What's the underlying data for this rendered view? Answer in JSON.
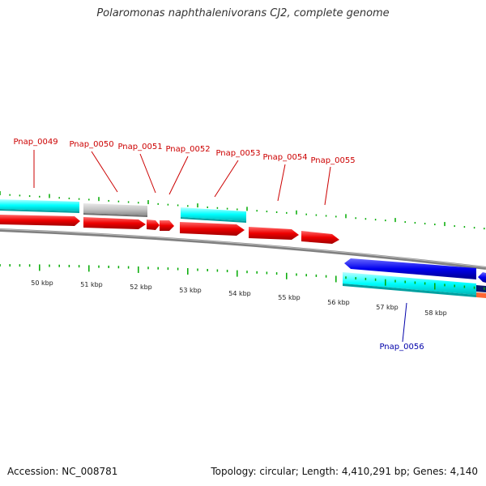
{
  "title": "Polaromonas naphthalenivorans CJ2, complete genome",
  "footer": {
    "accession": "Accession: NC_008781",
    "summary": "Topology: circular; Length: 4,410,291 bp; Genes: 4,140"
  },
  "colors": {
    "backbone": "#8c8c8c",
    "forward_cds": "#ff0000",
    "reverse_cds": "#0000ee",
    "cyan_band": "#00ffff",
    "grey_band": "#c0c0c0",
    "tick": "#00aa00",
    "label_forward": "#cc0000",
    "label_reverse": "#0000aa",
    "orange_band": "#ff6633"
  },
  "scale": {
    "unit": "kbp",
    "labels": [
      "50 kbp",
      "51 kbp",
      "52 kbp",
      "53 kbp",
      "54 kbp",
      "55 kbp",
      "56 kbp",
      "57 kbp",
      "58 kbp"
    ]
  },
  "genes": [
    {
      "name": "Pnap_0049",
      "strand": "forward"
    },
    {
      "name": "Pnap_0050",
      "strand": "forward"
    },
    {
      "name": "Pnap_0051",
      "strand": "forward"
    },
    {
      "name": "Pnap_0052",
      "strand": "forward"
    },
    {
      "name": "Pnap_0053",
      "strand": "forward"
    },
    {
      "name": "Pnap_0054",
      "strand": "forward"
    },
    {
      "name": "Pnap_0055",
      "strand": "forward"
    },
    {
      "name": "Pnap_0056",
      "strand": "reverse"
    }
  ]
}
